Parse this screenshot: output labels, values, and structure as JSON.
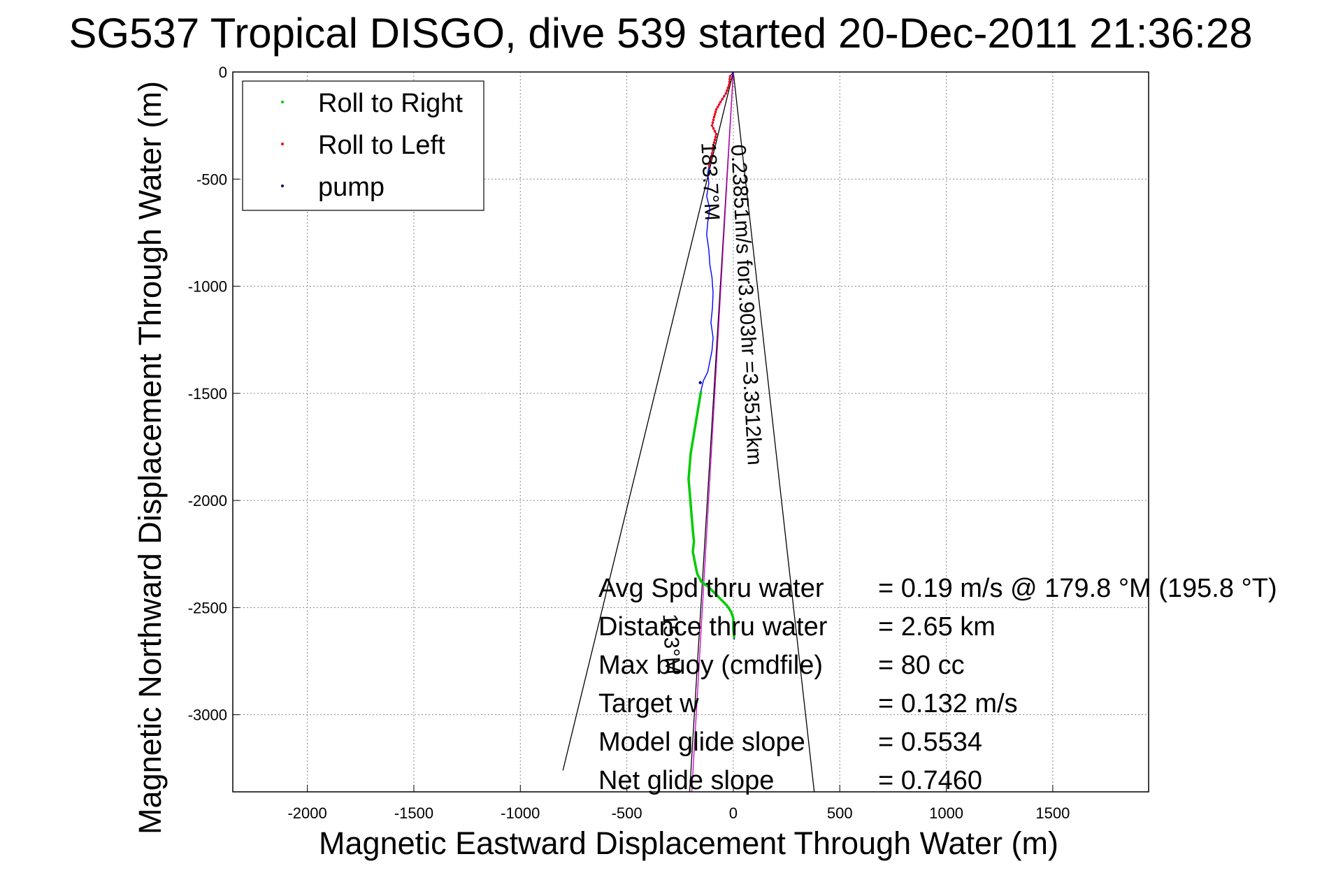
{
  "chart_data": {
    "type": "line",
    "title": "SG537 Tropical DISGO, dive 539 started 20-Dec-2011 21:36:28",
    "xlabel": "Magnetic Eastward Displacement Through Water (m)",
    "ylabel": "Magnetic Northward Displacement Through Water (m)",
    "xlim": [
      -2350,
      1950
    ],
    "ylim": [
      -3360,
      0
    ],
    "xticks": [
      -2000,
      -1500,
      -1000,
      -500,
      0,
      500,
      1000,
      1500
    ],
    "yticks": [
      0,
      -500,
      -1000,
      -1500,
      -2000,
      -2500,
      -3000
    ],
    "xtick_labels": [
      "-2000",
      "-1500",
      "-1000",
      "-500",
      "0",
      "500",
      "1000",
      "1500"
    ],
    "ytick_labels": [
      "0",
      "-500",
      "-1000",
      "-1500",
      "-2000",
      "-2500",
      "-3000"
    ],
    "grid": true,
    "legend": {
      "position": "top-left",
      "entries": [
        {
          "label": "Roll to Right",
          "color": "#00cc00"
        },
        {
          "label": "Roll to Left",
          "color": "#ff0000"
        },
        {
          "label": "pump",
          "color": "#000080"
        }
      ]
    },
    "track": {
      "color": "#0000ff",
      "points": [
        [
          0,
          0
        ],
        [
          -15,
          -20
        ],
        [
          -20,
          -60
        ],
        [
          -35,
          -100
        ],
        [
          -60,
          -140
        ],
        [
          -80,
          -175
        ],
        [
          -90,
          -210
        ],
        [
          -100,
          -250
        ],
        [
          -80,
          -290
        ],
        [
          -90,
          -330
        ],
        [
          -100,
          -380
        ],
        [
          -110,
          -420
        ],
        [
          -120,
          -470
        ],
        [
          -115,
          -520
        ],
        [
          -125,
          -580
        ],
        [
          -110,
          -640
        ],
        [
          -120,
          -700
        ],
        [
          -125,
          -760
        ],
        [
          -115,
          -830
        ],
        [
          -110,
          -900
        ],
        [
          -100,
          -960
        ],
        [
          -95,
          -1030
        ],
        [
          -98,
          -1100
        ],
        [
          -105,
          -1170
        ],
        [
          -95,
          -1240
        ],
        [
          -100,
          -1300
        ],
        [
          -110,
          -1350
        ],
        [
          -120,
          -1400
        ],
        [
          -140,
          -1440
        ],
        [
          -150,
          -1480
        ],
        [
          -160,
          -1540
        ],
        [
          -170,
          -1600
        ],
        [
          -180,
          -1660
        ],
        [
          -190,
          -1720
        ],
        [
          -200,
          -1780
        ],
        [
          -205,
          -1840
        ],
        [
          -210,
          -1900
        ],
        [
          -205,
          -1960
        ],
        [
          -200,
          -2020
        ],
        [
          -195,
          -2080
        ],
        [
          -190,
          -2140
        ],
        [
          -185,
          -2190
        ],
        [
          -190,
          -2240
        ],
        [
          -180,
          -2290
        ],
        [
          -170,
          -2340
        ],
        [
          -150,
          -2380
        ],
        [
          -120,
          -2400
        ],
        [
          -90,
          -2430
        ],
        [
          -60,
          -2460
        ],
        [
          -30,
          -2490
        ],
        [
          -10,
          -2520
        ],
        [
          0,
          -2550
        ],
        [
          0,
          -2600
        ],
        [
          5,
          -2650
        ]
      ]
    },
    "roll_right_segments": [
      [
        -1490,
        -2650
      ]
    ],
    "roll_left_segments": [
      [
        -20,
        -450
      ]
    ],
    "pump_points": [
      [
        -155,
        -1450
      ]
    ],
    "lines": [
      {
        "name": "",
        "color": "#000000",
        "points": [
          [
            0,
            0
          ],
          [
            -800,
            -3260
          ]
        ]
      },
      {
        "name": "",
        "color": "#000000",
        "points": [
          [
            0,
            0
          ],
          [
            380,
            -3360
          ]
        ]
      },
      {
        "name": "",
        "color": "#000000",
        "points": [
          [
            0,
            0
          ],
          [
            -205,
            -3360
          ]
        ]
      },
      {
        "name": "",
        "color": "#cc00cc",
        "points": [
          [
            0,
            0
          ],
          [
            -195,
            -3360
          ]
        ]
      }
    ],
    "line_labels": [
      {
        "text": "0.23851m/s for3.903hr =3.3512km",
        "x": -10,
        "y": -340,
        "angle": 87
      },
      {
        "text": "183.7°M",
        "x": -150,
        "y": -330,
        "angle": 87
      },
      {
        "text": "153°M",
        "x": -330,
        "y": -2530,
        "angle": 87
      }
    ],
    "stats": [
      {
        "label": "Avg Spd thru water",
        "value": "=  0.19 m/s @ 179.8 °M (195.8 °T)"
      },
      {
        "label": "Distance thru water",
        "value": "=  2.65 km"
      },
      {
        "label": "Max buoy (cmdfile)",
        "value": "= 80 cc"
      },
      {
        "label": "Target w",
        "value": "= 0.132 m/s"
      },
      {
        "label": "Model glide slope",
        "value": "= 0.5534"
      },
      {
        "label": "Net glide slope",
        "value": "= 0.7460"
      }
    ]
  }
}
